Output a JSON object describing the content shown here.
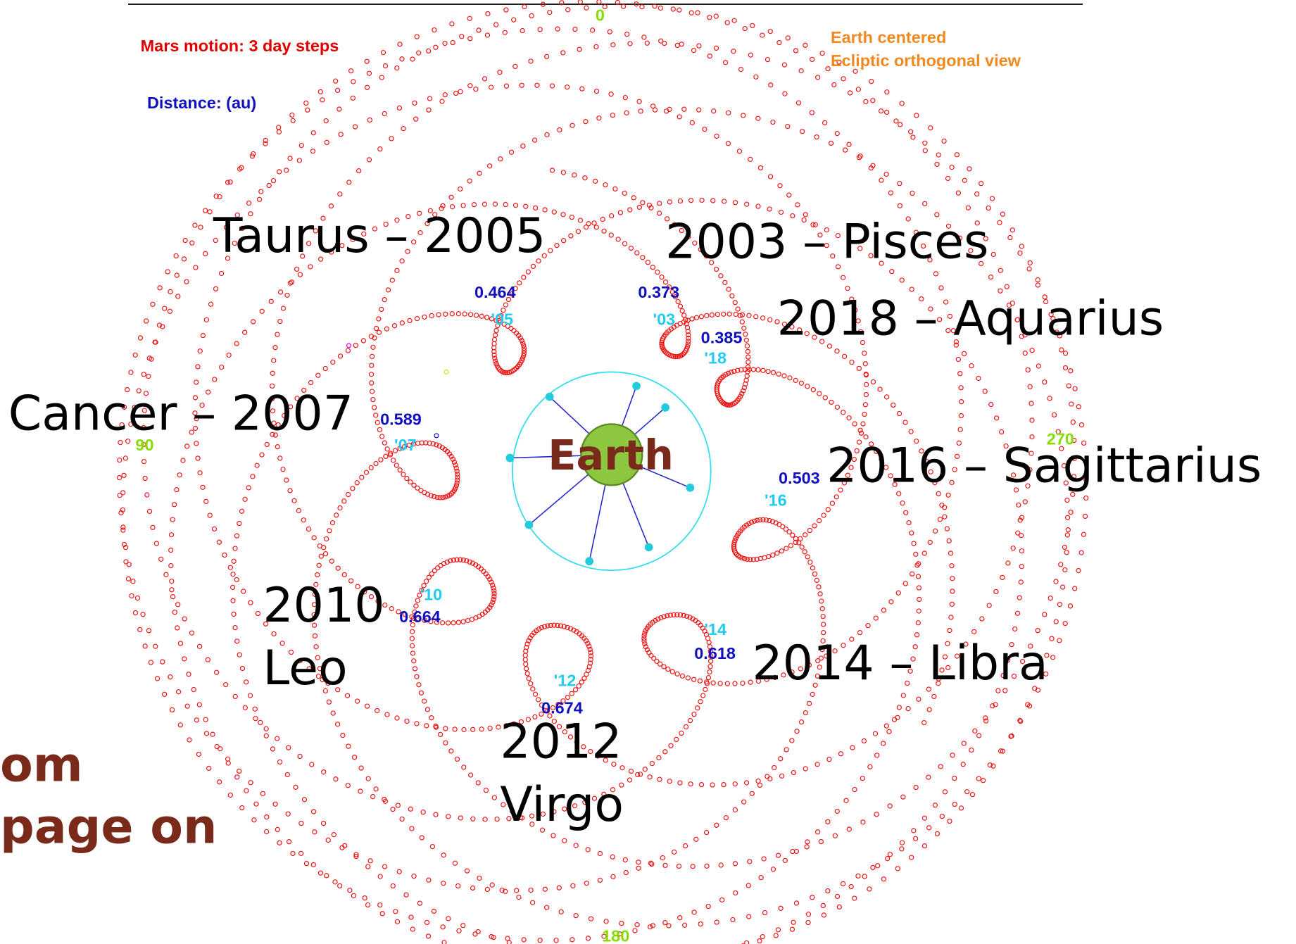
{
  "header": {
    "motion": "Mars motion: 3 day steps",
    "distance": "Distance: (au)",
    "view": [
      "Earth centered",
      "Ecliptic orthogonal view"
    ]
  },
  "angles": [
    "0",
    "90",
    "180",
    "270"
  ],
  "center": "Earth",
  "oppositions": [
    {
      "label": [
        "Taurus – 2005"
      ],
      "distance": "0.464",
      "year": "'05"
    },
    {
      "label": [
        "2003 – Pisces"
      ],
      "distance": "0.373",
      "year": "'03"
    },
    {
      "label": [
        "2018 – Aquarius"
      ],
      "distance": "0.385",
      "year": "'18"
    },
    {
      "label": [
        "Cancer – 2007"
      ],
      "distance": "0.589",
      "year": "'07"
    },
    {
      "label": [
        "2016 – Sagittarius"
      ],
      "distance": "0.503",
      "year": "'16"
    },
    {
      "label": [
        "2010",
        "Leo"
      ],
      "distance": "0.664",
      "year": "'10"
    },
    {
      "label": [
        "2014 – Libra"
      ],
      "distance": "0.618",
      "year": "'14"
    },
    {
      "label": [
        "2012",
        "Virgo"
      ],
      "distance": "0.674",
      "year": "'12"
    }
  ],
  "caption": [
    "om",
    "page on"
  ]
}
